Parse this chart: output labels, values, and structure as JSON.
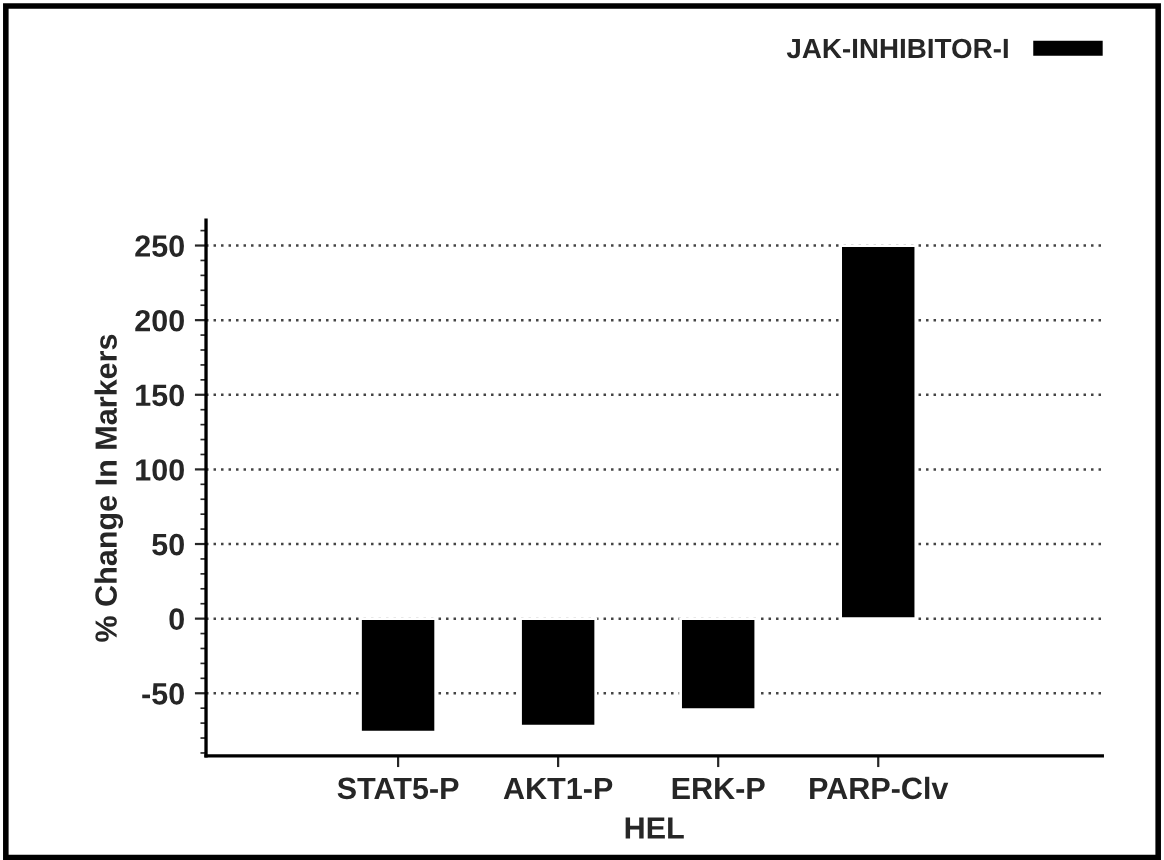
{
  "chart_data": {
    "type": "bar",
    "xlabel": "HEL",
    "ylabel": "% Change In Markers",
    "categories": [
      "STAT5-P",
      "AKT1-P",
      "ERK-P",
      "PARP-Clv"
    ],
    "series": [
      {
        "name": "JAK-INHIBITOR-I",
        "color": "#000000",
        "values": [
          -76,
          -72,
          -61,
          250
        ]
      }
    ],
    "ylim": [
      -92,
      267
    ],
    "yticks": [
      -50,
      0,
      50,
      100,
      150,
      200,
      250
    ],
    "grid": "y",
    "legend": "top right"
  }
}
